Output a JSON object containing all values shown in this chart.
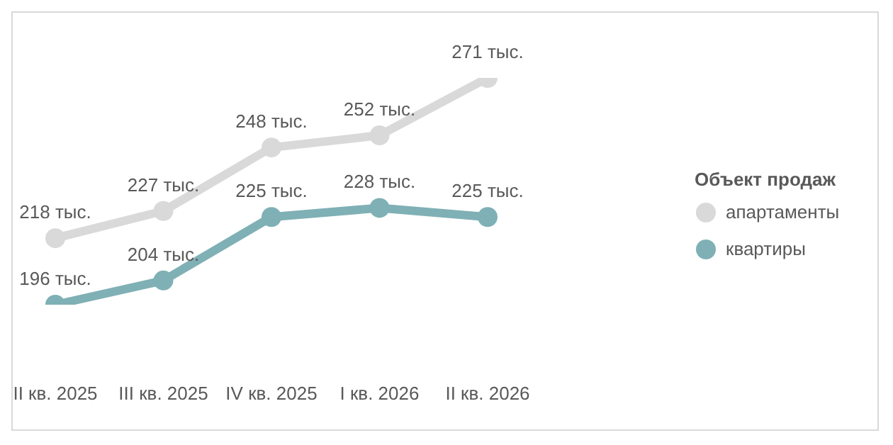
{
  "chart_data": {
    "type": "line",
    "categories": [
      "II кв. 2025",
      "III кв. 2025",
      "IV кв. 2025",
      "I кв. 2026",
      "II кв. 2026"
    ],
    "series": [
      {
        "name": "апартаменты",
        "color": "#d9d9d9",
        "values": [
          218,
          227,
          248,
          252,
          271
        ],
        "value_labels": [
          "218 тыс.",
          "227 тыс.",
          "248 тыс.",
          "252 тыс.",
          "271 тыс."
        ]
      },
      {
        "name": "квартиры",
        "color": "#7fb0b5",
        "values": [
          196,
          204,
          225,
          228,
          225
        ],
        "value_labels": [
          "196 тыс.",
          "204 тыс.",
          "225 тыс.",
          "228 тыс.",
          "225 тыс."
        ]
      }
    ],
    "tick_labels": "x",
    "legend": "right",
    "legend_title": "Объект продаж",
    "marker": "circle",
    "line_style": "solid",
    "grid": false
  }
}
